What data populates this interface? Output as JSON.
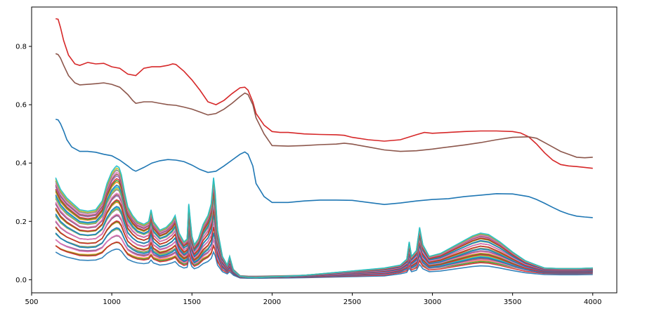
{
  "chart_data": {
    "type": "line",
    "title": "",
    "xlabel": "",
    "ylabel": "",
    "xlim": [
      500,
      4150
    ],
    "ylim": [
      -0.045,
      0.935
    ],
    "x_ticks": [
      500,
      1000,
      1500,
      2000,
      2500,
      3000,
      3500,
      4000
    ],
    "y_ticks": [
      0.0,
      0.2,
      0.4,
      0.6,
      0.8
    ],
    "x_tick_labels": [
      "500",
      "1000",
      "1500",
      "2000",
      "2500",
      "3000",
      "3500",
      "4000"
    ],
    "y_tick_labels": [
      "0.0",
      "0.2",
      "0.4",
      "0.6",
      "0.8"
    ],
    "grid": false,
    "legend": "none",
    "bundle_note_count": 40,
    "series": [
      {
        "color": "#d62728",
        "x": [
          650,
          665,
          680,
          700,
          730,
          770,
          800,
          850,
          900,
          950,
          1000,
          1050,
          1100,
          1150,
          1200,
          1250,
          1300,
          1350,
          1380,
          1400,
          1450,
          1500,
          1550,
          1600,
          1650,
          1700,
          1750,
          1800,
          1830,
          1850,
          1880,
          1900,
          1950,
          2000,
          2050,
          2100,
          2200,
          2300,
          2400,
          2450,
          2500,
          2600,
          2700,
          2800,
          2900,
          2950,
          3000,
          3100,
          3200,
          3300,
          3400,
          3500,
          3550,
          3600,
          3650,
          3700,
          3750,
          3800,
          3850,
          3900,
          3950,
          4000
        ],
        "y": [
          0.895,
          0.893,
          0.865,
          0.82,
          0.77,
          0.74,
          0.735,
          0.745,
          0.74,
          0.742,
          0.73,
          0.725,
          0.705,
          0.7,
          0.725,
          0.73,
          0.73,
          0.735,
          0.74,
          0.738,
          0.715,
          0.685,
          0.65,
          0.61,
          0.6,
          0.615,
          0.638,
          0.658,
          0.66,
          0.65,
          0.61,
          0.57,
          0.53,
          0.508,
          0.505,
          0.505,
          0.5,
          0.498,
          0.497,
          0.495,
          0.488,
          0.48,
          0.475,
          0.48,
          0.497,
          0.505,
          0.502,
          0.505,
          0.508,
          0.51,
          0.51,
          0.508,
          0.503,
          0.49,
          0.465,
          0.435,
          0.41,
          0.395,
          0.39,
          0.388,
          0.385,
          0.382
        ]
      },
      {
        "color": "#8c564b",
        "x": [
          650,
          665,
          680,
          700,
          730,
          770,
          800,
          850,
          900,
          950,
          1000,
          1050,
          1100,
          1130,
          1150,
          1200,
          1250,
          1300,
          1350,
          1400,
          1450,
          1500,
          1550,
          1600,
          1650,
          1700,
          1750,
          1800,
          1830,
          1850,
          1880,
          1900,
          1950,
          2000,
          2100,
          2200,
          2300,
          2400,
          2450,
          2500,
          2600,
          2700,
          2800,
          2900,
          3000,
          3100,
          3200,
          3300,
          3400,
          3500,
          3600,
          3650,
          3700,
          3750,
          3800,
          3850,
          3900,
          3950,
          4000
        ],
        "y": [
          0.775,
          0.772,
          0.76,
          0.735,
          0.7,
          0.675,
          0.668,
          0.67,
          0.672,
          0.675,
          0.67,
          0.66,
          0.635,
          0.615,
          0.605,
          0.61,
          0.61,
          0.605,
          0.6,
          0.598,
          0.592,
          0.585,
          0.575,
          0.565,
          0.57,
          0.585,
          0.605,
          0.628,
          0.64,
          0.635,
          0.6,
          0.555,
          0.5,
          0.46,
          0.458,
          0.46,
          0.463,
          0.465,
          0.468,
          0.465,
          0.455,
          0.445,
          0.44,
          0.442,
          0.448,
          0.455,
          0.462,
          0.47,
          0.48,
          0.488,
          0.49,
          0.485,
          0.47,
          0.455,
          0.44,
          0.43,
          0.42,
          0.418,
          0.42
        ]
      },
      {
        "color": "#1f77b4",
        "x": [
          650,
          665,
          680,
          700,
          720,
          750,
          800,
          850,
          900,
          950,
          1000,
          1050,
          1100,
          1130,
          1150,
          1200,
          1250,
          1300,
          1350,
          1400,
          1450,
          1500,
          1550,
          1600,
          1650,
          1700,
          1750,
          1800,
          1830,
          1850,
          1880,
          1900,
          1950,
          2000,
          2100,
          2200,
          2300,
          2400,
          2500,
          2600,
          2700,
          2800,
          2900,
          3000,
          3100,
          3200,
          3300,
          3400,
          3500,
          3600,
          3650,
          3700,
          3750,
          3800,
          3850,
          3900,
          3950,
          4000
        ],
        "y": [
          0.55,
          0.548,
          0.535,
          0.51,
          0.48,
          0.455,
          0.44,
          0.44,
          0.437,
          0.43,
          0.425,
          0.41,
          0.39,
          0.377,
          0.372,
          0.385,
          0.4,
          0.408,
          0.412,
          0.41,
          0.405,
          0.393,
          0.378,
          0.368,
          0.372,
          0.39,
          0.41,
          0.43,
          0.438,
          0.43,
          0.39,
          0.33,
          0.285,
          0.265,
          0.265,
          0.27,
          0.273,
          0.273,
          0.272,
          0.265,
          0.258,
          0.263,
          0.27,
          0.275,
          0.278,
          0.285,
          0.29,
          0.295,
          0.294,
          0.285,
          0.275,
          0.262,
          0.248,
          0.235,
          0.225,
          0.218,
          0.215,
          0.213
        ]
      }
    ],
    "bundle_profile": {
      "x": [
        650,
        680,
        720,
        760,
        800,
        850,
        900,
        940,
        970,
        1000,
        1020,
        1030,
        1045,
        1060,
        1080,
        1100,
        1130,
        1160,
        1200,
        1230,
        1245,
        1260,
        1300,
        1340,
        1375,
        1395,
        1420,
        1450,
        1470,
        1480,
        1500,
        1515,
        1540,
        1570,
        1600,
        1620,
        1635,
        1645,
        1660,
        1690,
        1720,
        1735,
        1760,
        1800,
        1850,
        1900,
        2000,
        2100,
        2200,
        2300,
        2400,
        2500,
        2600,
        2700,
        2800,
        2840,
        2855,
        2870,
        2900,
        2920,
        2940,
        2980,
        3050,
        3150,
        3250,
        3300,
        3350,
        3420,
        3500,
        3580,
        3650,
        3700,
        3800,
        3900,
        4000
      ],
      "y": [
        0.35,
        0.31,
        0.28,
        0.26,
        0.24,
        0.235,
        0.24,
        0.27,
        0.33,
        0.37,
        0.385,
        0.39,
        0.385,
        0.36,
        0.3,
        0.25,
        0.22,
        0.2,
        0.19,
        0.2,
        0.24,
        0.2,
        0.17,
        0.18,
        0.2,
        0.22,
        0.16,
        0.13,
        0.14,
        0.26,
        0.15,
        0.12,
        0.14,
        0.19,
        0.22,
        0.26,
        0.35,
        0.3,
        0.17,
        0.08,
        0.05,
        0.08,
        0.03,
        0.012,
        0.008,
        0.007,
        0.01,
        0.012,
        0.015,
        0.02,
        0.025,
        0.03,
        0.035,
        0.04,
        0.05,
        0.07,
        0.13,
        0.08,
        0.1,
        0.18,
        0.12,
        0.08,
        0.09,
        0.12,
        0.15,
        0.16,
        0.155,
        0.13,
        0.095,
        0.065,
        0.05,
        0.04,
        0.038,
        0.038,
        0.04
      ]
    },
    "bundle_colors": [
      "#1f77b4",
      "#ff7f0e",
      "#2ca02c",
      "#d62728",
      "#9467bd",
      "#8c564b",
      "#e377c2",
      "#7f7f7f",
      "#bcbd22",
      "#17becf"
    ]
  }
}
